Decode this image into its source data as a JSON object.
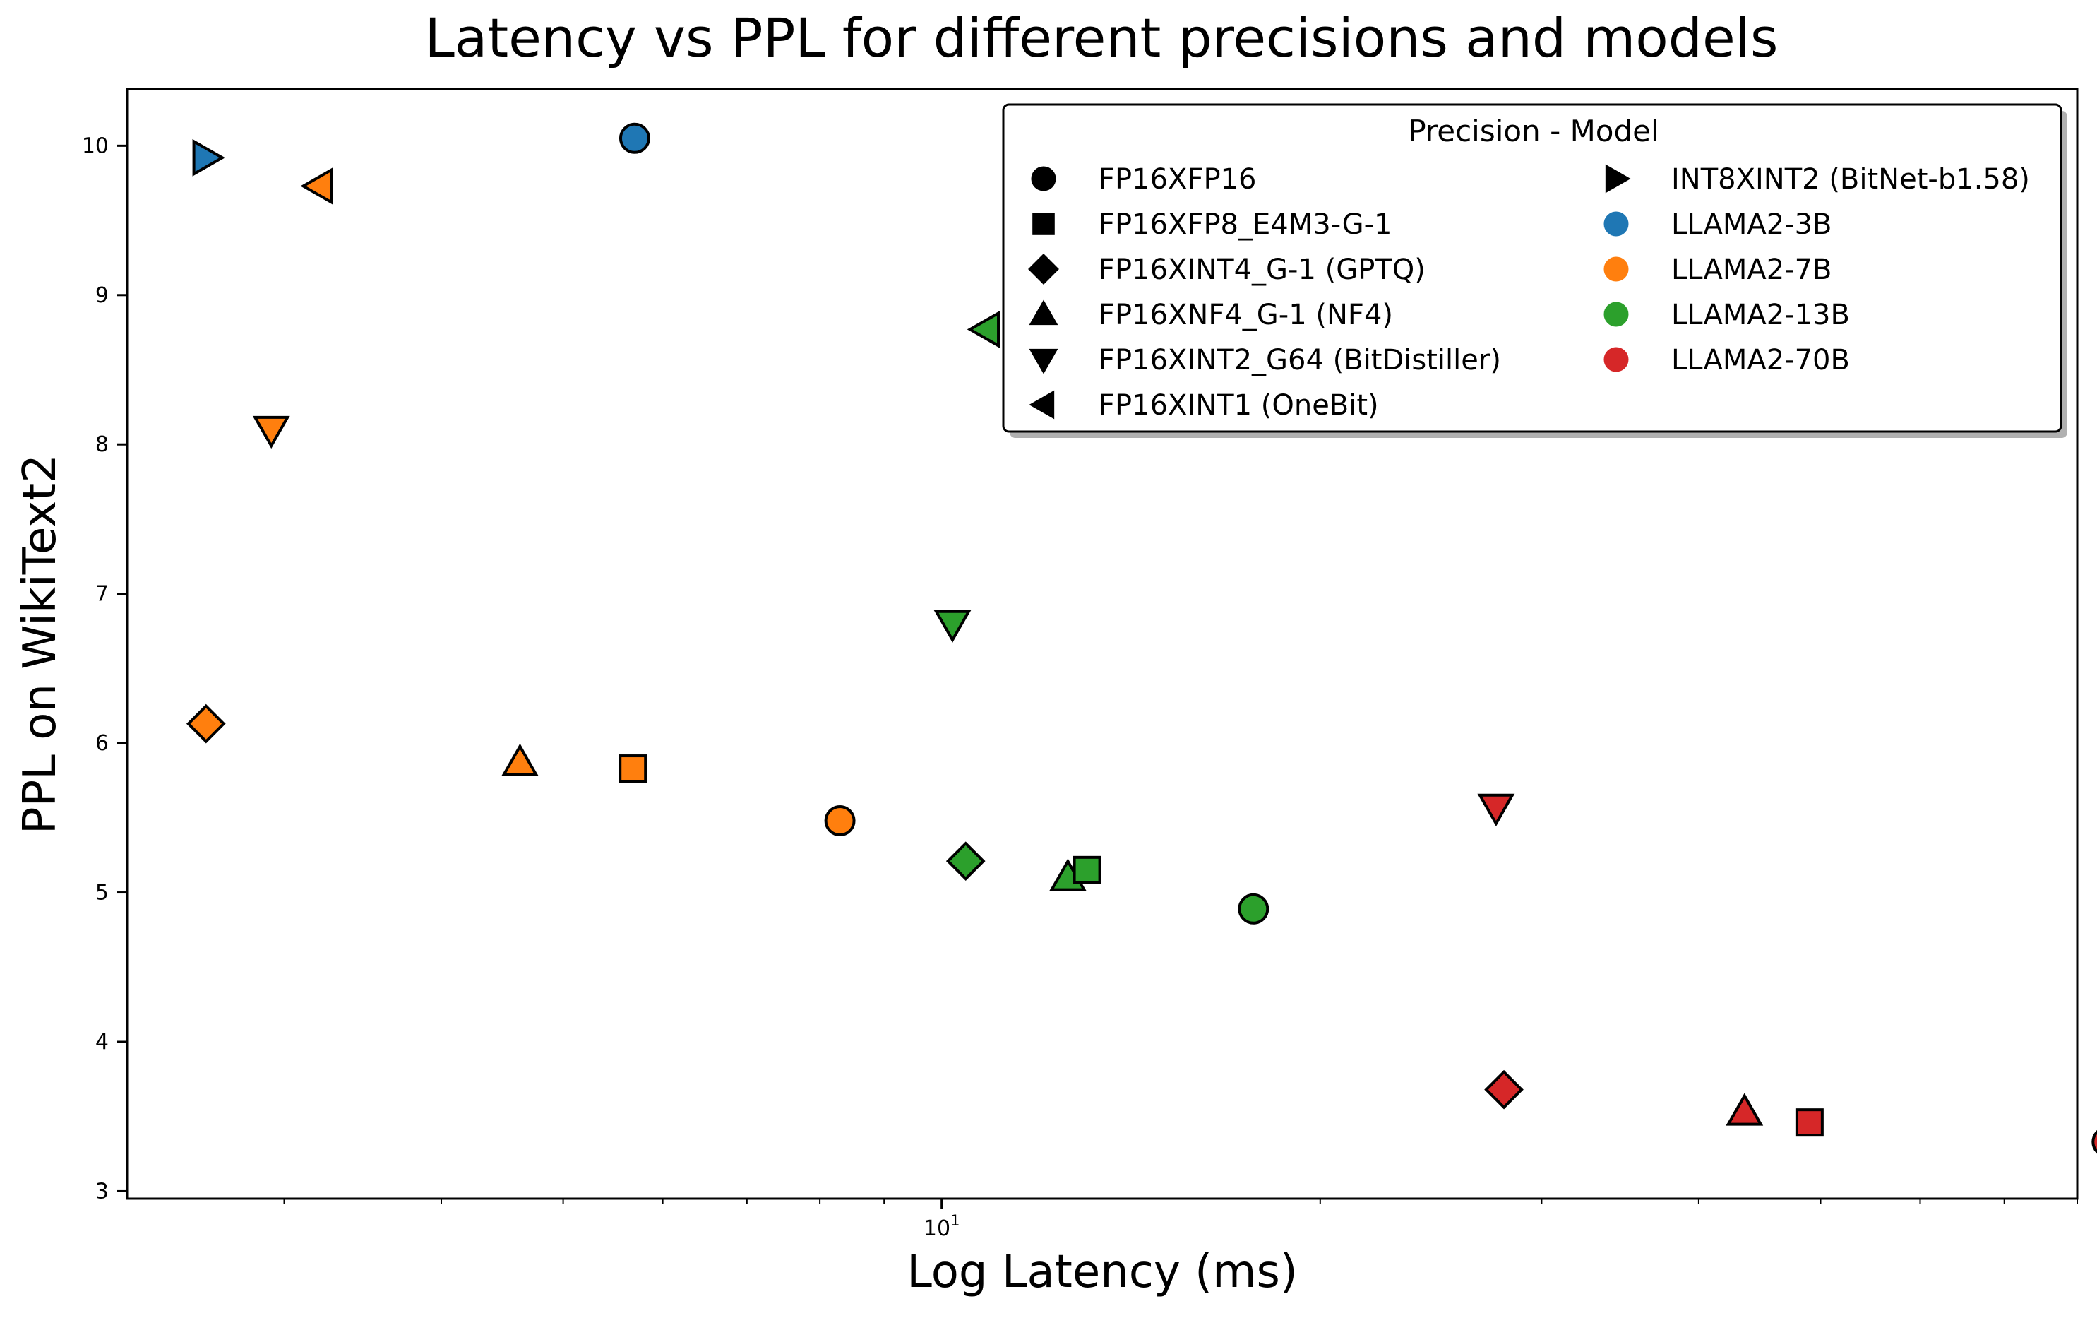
{
  "chart_data": {
    "type": "scatter",
    "title": "Latency vs PPL for different precisions and models",
    "xlabel": "Log Latency (ms)",
    "ylabel": "PPL on WikiText2",
    "xscale": "log",
    "xlim": [
      2.25,
      80
    ],
    "ylim": [
      2.95,
      10.38
    ],
    "yticks": [
      3,
      4,
      5,
      6,
      7,
      8,
      9,
      10
    ],
    "xticks_major": [
      {
        "value": 10,
        "base": "10",
        "exp": "1"
      }
    ],
    "grid": false,
    "legend": {
      "title": "Precision - Model",
      "placement": "upper right",
      "markers": [
        {
          "label": "FP16XFP16",
          "marker": "circle"
        },
        {
          "label": "FP16XFP8_E4M3-G-1",
          "marker": "square"
        },
        {
          "label": "FP16XINT4_G-1 (GPTQ)",
          "marker": "diamond"
        },
        {
          "label": "FP16XNF4_G-1 (NF4)",
          "marker": "triangle-up"
        },
        {
          "label": "FP16XINT2_G64 (BitDistiller)",
          "marker": "triangle-down"
        },
        {
          "label": "FP16XINT1 (OneBit)",
          "marker": "triangle-left"
        }
      ],
      "models": [
        {
          "label": "INT8XINT2 (BitNet-b1.58)",
          "marker": "triangle-right",
          "color": "#000000"
        },
        {
          "label": "LLAMA2-3B",
          "marker": "circle",
          "color": "#1f77b4"
        },
        {
          "label": "LLAMA2-7B",
          "marker": "circle",
          "color": "#ff7f0e"
        },
        {
          "label": "LLAMA2-13B",
          "marker": "circle",
          "color": "#2ca02c"
        },
        {
          "label": "LLAMA2-70B",
          "marker": "circle",
          "color": "#d62728"
        }
      ]
    },
    "points": [
      {
        "x": 2.6,
        "y": 9.92,
        "marker": "triangle-right",
        "color": "#1f77b4"
      },
      {
        "x": 5.7,
        "y": 10.05,
        "marker": "circle",
        "color": "#1f77b4"
      },
      {
        "x": 3.2,
        "y": 9.73,
        "marker": "triangle-left",
        "color": "#ff7f0e"
      },
      {
        "x": 2.93,
        "y": 8.1,
        "marker": "triangle-down",
        "color": "#ff7f0e"
      },
      {
        "x": 2.6,
        "y": 6.13,
        "marker": "diamond",
        "color": "#ff7f0e"
      },
      {
        "x": 4.62,
        "y": 5.87,
        "marker": "triangle-up",
        "color": "#ff7f0e"
      },
      {
        "x": 5.68,
        "y": 5.83,
        "marker": "square",
        "color": "#ff7f0e"
      },
      {
        "x": 8.3,
        "y": 5.48,
        "marker": "circle",
        "color": "#ff7f0e"
      },
      {
        "x": 10.85,
        "y": 8.77,
        "marker": "triangle-left",
        "color": "#2ca02c"
      },
      {
        "x": 10.2,
        "y": 6.8,
        "marker": "triangle-down",
        "color": "#2ca02c"
      },
      {
        "x": 10.45,
        "y": 5.21,
        "marker": "diamond",
        "color": "#2ca02c"
      },
      {
        "x": 12.6,
        "y": 5.1,
        "marker": "triangle-up",
        "color": "#2ca02c"
      },
      {
        "x": 13.05,
        "y": 5.15,
        "marker": "square",
        "color": "#2ca02c"
      },
      {
        "x": 17.7,
        "y": 4.89,
        "marker": "circle",
        "color": "#2ca02c"
      },
      {
        "x": 27.6,
        "y": 5.57,
        "marker": "triangle-down",
        "color": "#d62728"
      },
      {
        "x": 28.0,
        "y": 3.68,
        "marker": "diamond",
        "color": "#d62728"
      },
      {
        "x": 43.5,
        "y": 3.53,
        "marker": "triangle-up",
        "color": "#d62728"
      },
      {
        "x": 49.0,
        "y": 3.46,
        "marker": "square",
        "color": "#d62728"
      },
      {
        "x": 84.5,
        "y": 3.33,
        "marker": "circle",
        "color": "#d62728"
      }
    ]
  }
}
